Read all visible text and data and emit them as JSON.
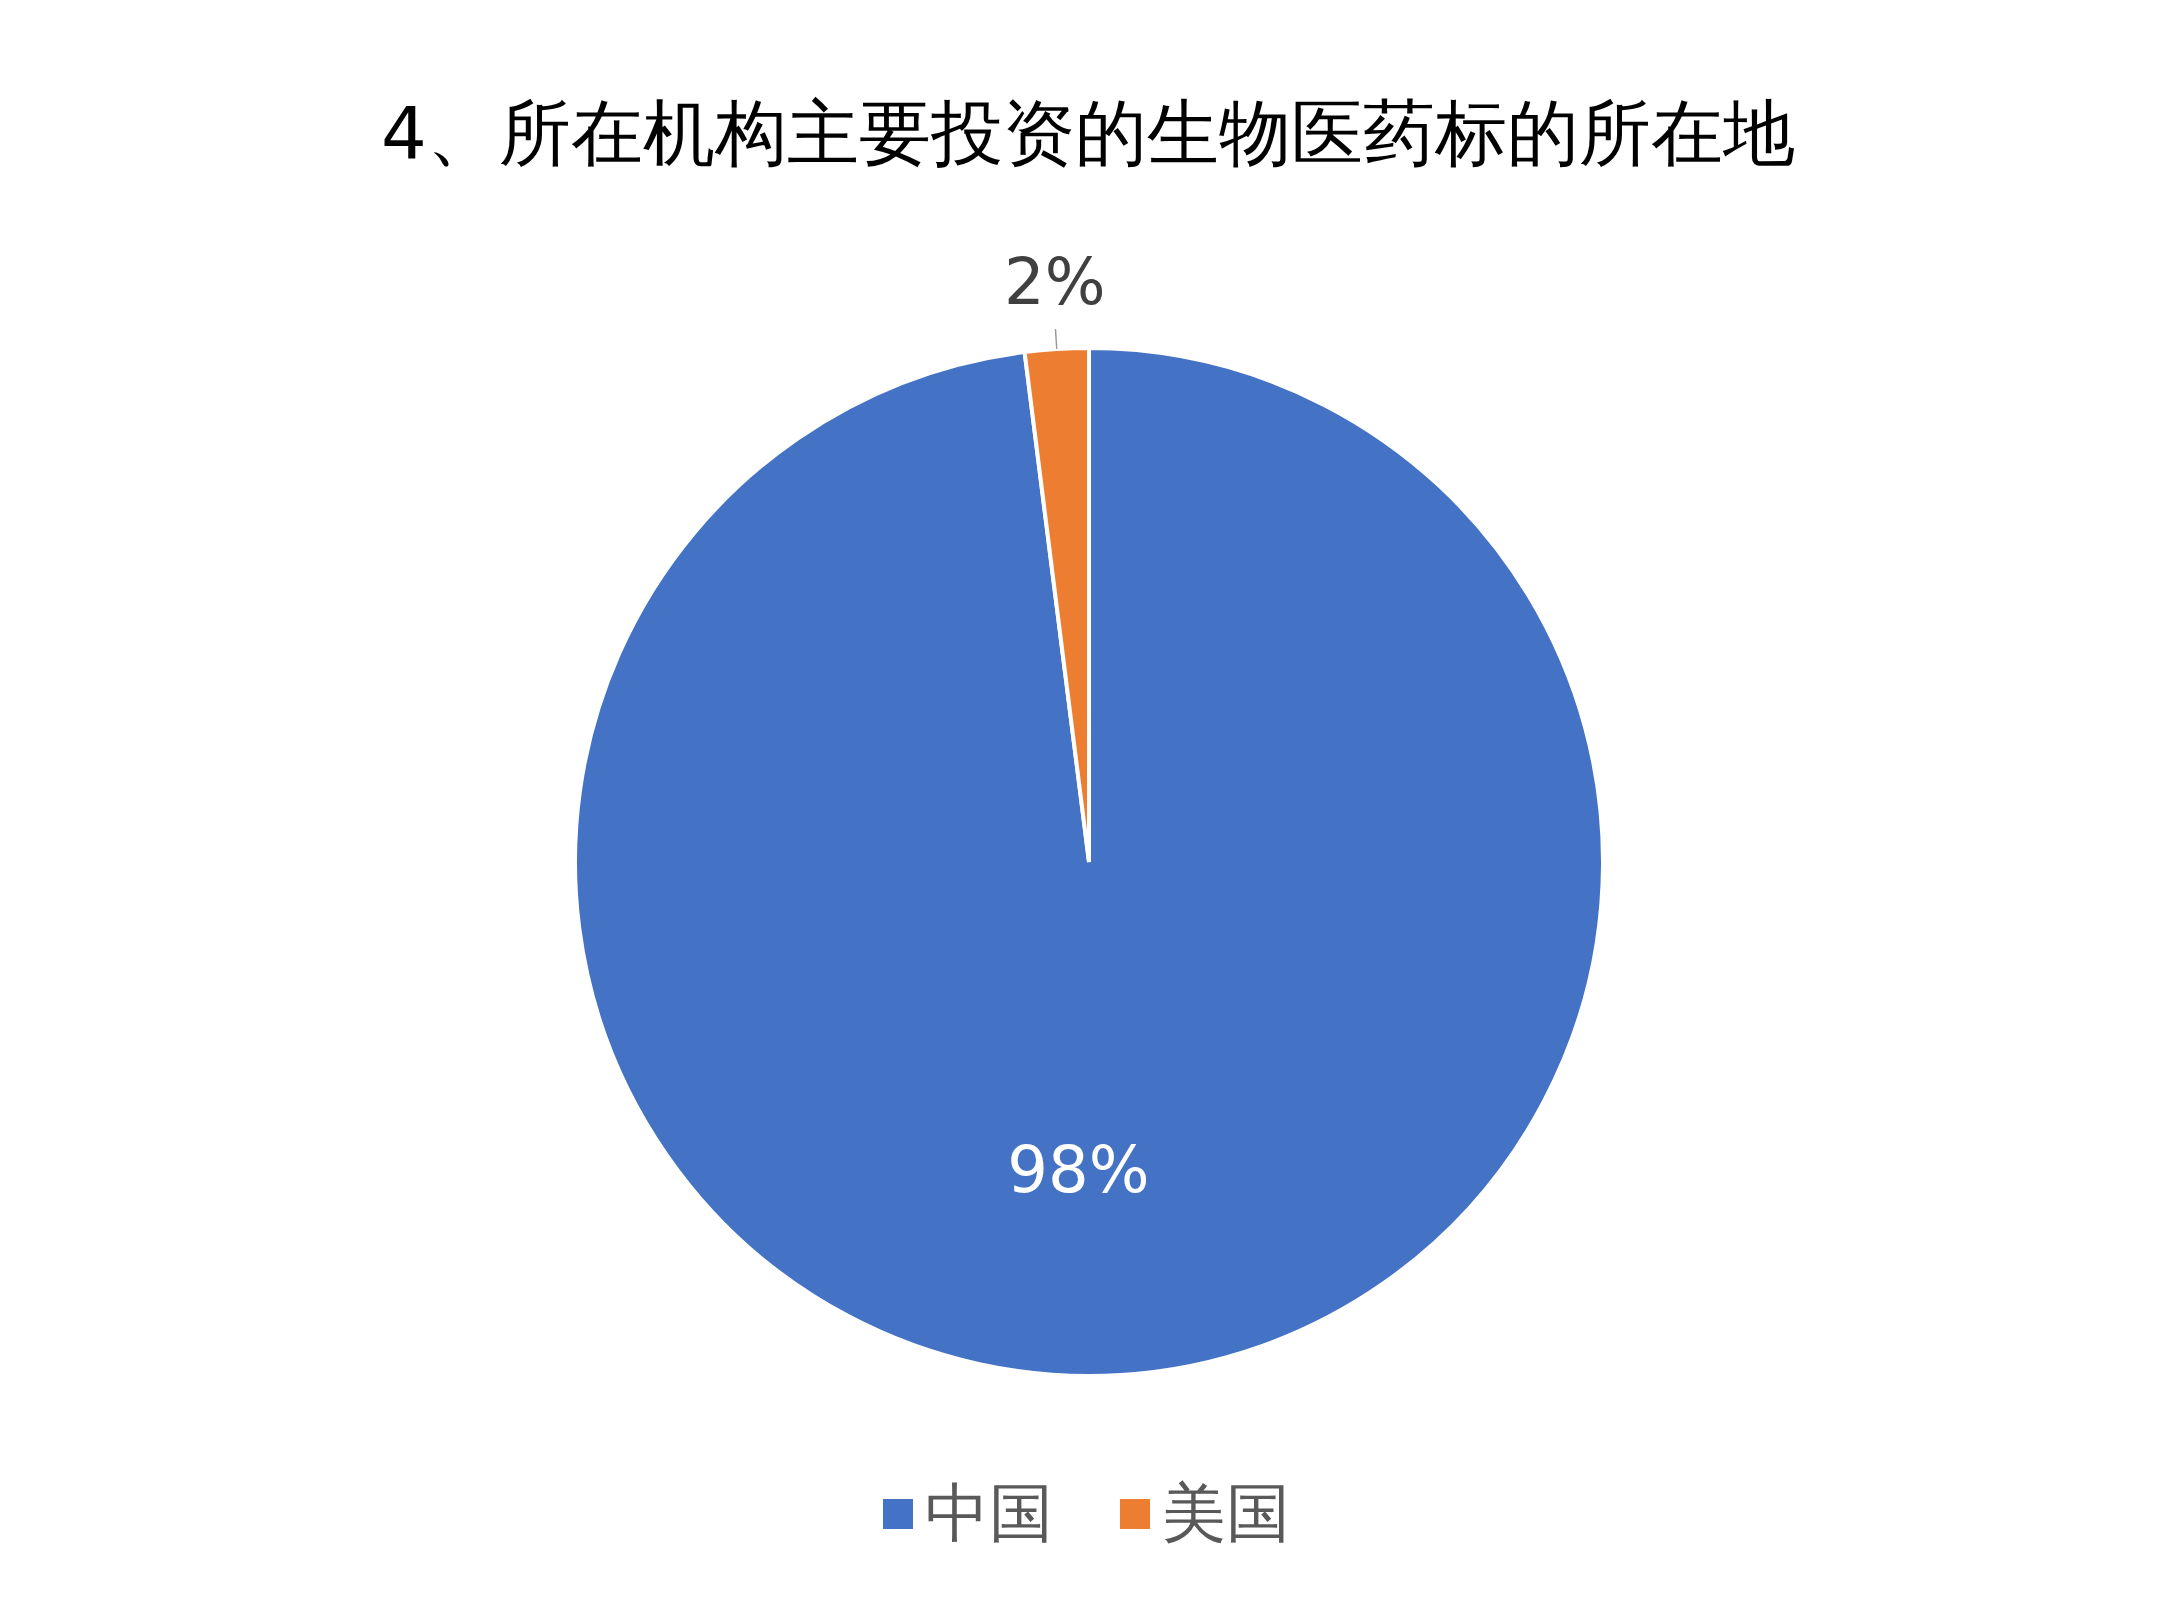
{
  "chart_data": {
    "type": "pie",
    "title": "4、所在机构主要投资的生物医药标的所在地",
    "categories": [
      "中国",
      "美国"
    ],
    "values": [
      98,
      2
    ],
    "colors": [
      "#4472c4",
      "#ed7d31"
    ],
    "value_labels": [
      "98%",
      "2%"
    ],
    "legend": "bottom"
  }
}
